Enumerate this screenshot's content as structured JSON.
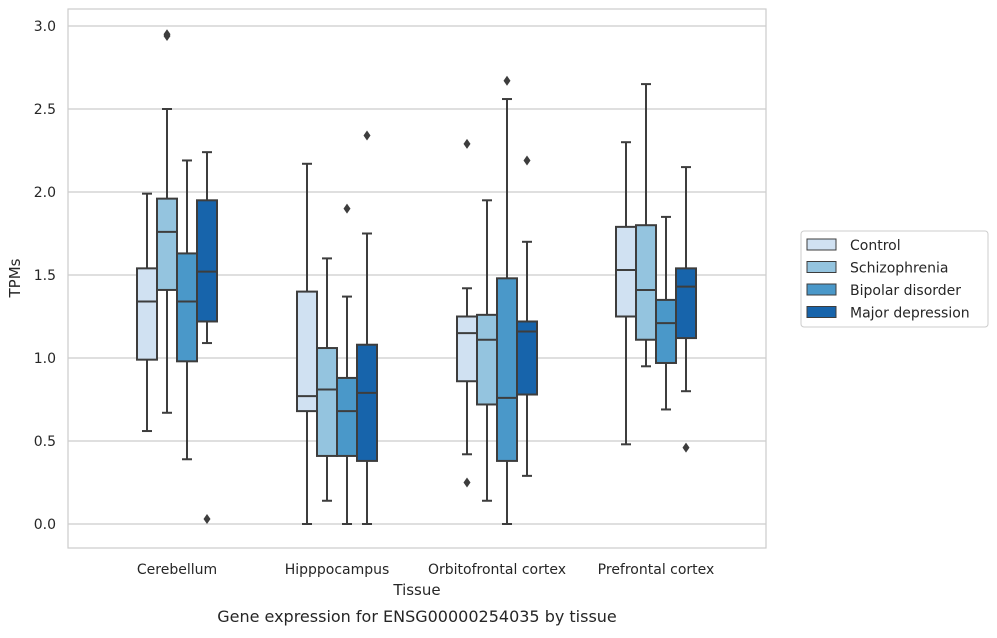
{
  "chart_data": {
    "type": "box",
    "caption": "Gene expression for ENSG00000254035 by tissue",
    "xlabel": "Tissue",
    "ylabel": "TPMs",
    "ylim": [
      -0.14,
      3.1
    ],
    "yticks": [
      0.0,
      0.5,
      1.0,
      1.5,
      2.0,
      2.5,
      3.0
    ],
    "ytick_labels": [
      "0.0",
      "0.5",
      "1.0",
      "1.5",
      "2.0",
      "2.5",
      "3.0"
    ],
    "grid": "horizontal",
    "legend_position": "right",
    "categories": [
      "Cerebellum",
      "Hipppocampus",
      "Orbitofrontal cortex",
      "Prefrontal cortex"
    ],
    "series": [
      {
        "name": "Control",
        "color": "#d0e1f2",
        "boxes": [
          {
            "whisker_low": 0.56,
            "q1": 0.99,
            "median": 1.34,
            "q3": 1.54,
            "whisker_high": 1.99,
            "outliers": []
          },
          {
            "whisker_low": 0.0,
            "q1": 0.68,
            "median": 0.77,
            "q3": 1.4,
            "whisker_high": 2.17,
            "outliers": []
          },
          {
            "whisker_low": 0.42,
            "q1": 0.86,
            "median": 1.15,
            "q3": 1.25,
            "whisker_high": 1.42,
            "outliers": [
              0.25,
              2.29
            ]
          },
          {
            "whisker_low": 0.48,
            "q1": 1.25,
            "median": 1.53,
            "q3": 1.79,
            "whisker_high": 2.3,
            "outliers": []
          }
        ]
      },
      {
        "name": "Schizophrenia",
        "color": "#94c4df",
        "boxes": [
          {
            "whisker_low": 0.67,
            "q1": 1.41,
            "median": 1.76,
            "q3": 1.96,
            "whisker_high": 2.5,
            "outliers": [
              2.94,
              2.95
            ]
          },
          {
            "whisker_low": 0.14,
            "q1": 0.41,
            "median": 0.81,
            "q3": 1.06,
            "whisker_high": 1.6,
            "outliers": []
          },
          {
            "whisker_low": 0.14,
            "q1": 0.72,
            "median": 1.11,
            "q3": 1.26,
            "whisker_high": 1.95,
            "outliers": []
          },
          {
            "whisker_low": 0.95,
            "q1": 1.11,
            "median": 1.41,
            "q3": 1.8,
            "whisker_high": 2.65,
            "outliers": []
          }
        ]
      },
      {
        "name": "Bipolar disorder",
        "color": "#4a98c9",
        "boxes": [
          {
            "whisker_low": 0.39,
            "q1": 0.98,
            "median": 1.34,
            "q3": 1.63,
            "whisker_high": 2.19,
            "outliers": []
          },
          {
            "whisker_low": 0.0,
            "q1": 0.41,
            "median": 0.68,
            "q3": 0.88,
            "whisker_high": 1.37,
            "outliers": [
              1.9
            ]
          },
          {
            "whisker_low": 0.0,
            "q1": 0.38,
            "median": 0.76,
            "q3": 1.48,
            "whisker_high": 2.56,
            "outliers": [
              2.67
            ]
          },
          {
            "whisker_low": 0.69,
            "q1": 0.97,
            "median": 1.21,
            "q3": 1.35,
            "whisker_high": 1.85,
            "outliers": []
          }
        ]
      },
      {
        "name": "Major depression",
        "color": "#1764ab",
        "boxes": [
          {
            "whisker_low": 1.09,
            "q1": 1.22,
            "median": 1.52,
            "q3": 1.95,
            "whisker_high": 2.24,
            "outliers": [
              0.03
            ]
          },
          {
            "whisker_low": 0.0,
            "q1": 0.38,
            "median": 0.79,
            "q3": 1.08,
            "whisker_high": 1.75,
            "outliers": [
              2.34
            ]
          },
          {
            "whisker_low": 0.29,
            "q1": 0.78,
            "median": 1.16,
            "q3": 1.22,
            "whisker_high": 1.7,
            "outliers": [
              2.19
            ]
          },
          {
            "whisker_low": 0.8,
            "q1": 1.12,
            "median": 1.43,
            "q3": 1.54,
            "whisker_high": 2.15,
            "outliers": [
              0.46
            ]
          }
        ]
      }
    ]
  }
}
